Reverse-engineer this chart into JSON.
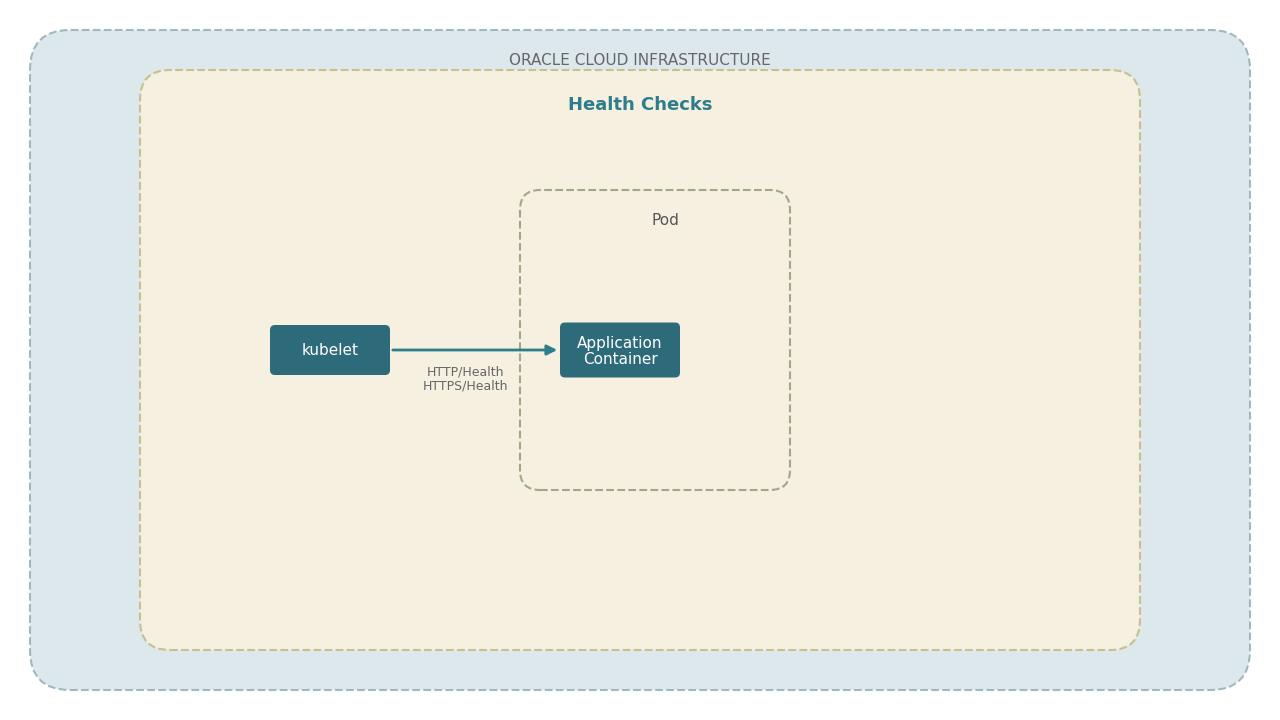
{
  "bg_outer_color": "#dce8ec",
  "bg_outer_label": "ORACLE CLOUD INFRASTRUCTURE",
  "bg_outer_label_color": "#666666",
  "bg_outer_label_fontsize": 11,
  "bg_inner_color": "#f5f0e0",
  "bg_inner_label": "Health Checks",
  "bg_inner_label_color": "#2e7d8c",
  "bg_inner_label_fontsize": 13,
  "pod_label": "Pod",
  "pod_label_color": "#555555",
  "pod_label_fontsize": 11,
  "kubelet_box_color": "#2e6b7a",
  "kubelet_text": "kubelet",
  "kubelet_text_color": "#ffffff",
  "kubelet_text_fontsize": 11,
  "app_box_color": "#2e6b7a",
  "app_text_line1": "Application",
  "app_text_line2": "Container",
  "app_text_color": "#ffffff",
  "app_text_fontsize": 11,
  "arrow_color": "#2e7d8c",
  "arrow_label_line1": "HTTP/Health",
  "arrow_label_line2": "HTTPS/Health",
  "arrow_label_color": "#666666",
  "arrow_label_fontsize": 9
}
